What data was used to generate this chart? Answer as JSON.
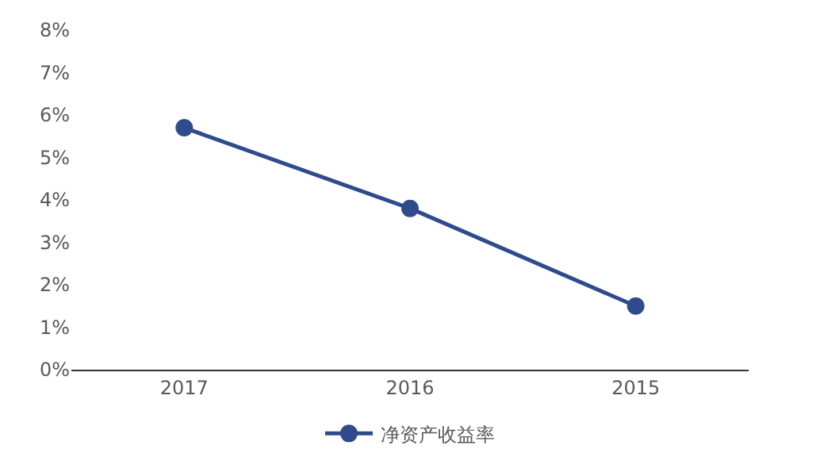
{
  "chart_data": {
    "type": "line",
    "categories": [
      "2017",
      "2016",
      "2015"
    ],
    "series": [
      {
        "name": "净资产收益率",
        "color": "#2f4b8c",
        "values": [
          5.7,
          3.8,
          1.5
        ]
      }
    ],
    "ylim": [
      0,
      8
    ],
    "yticks": [
      {
        "value": 0,
        "label": "0%"
      },
      {
        "value": 1,
        "label": "1%"
      },
      {
        "value": 2,
        "label": "2%"
      },
      {
        "value": 3,
        "label": "3%"
      },
      {
        "value": 4,
        "label": "4%"
      },
      {
        "value": 5,
        "label": "5%"
      },
      {
        "value": 6,
        "label": "6%"
      },
      {
        "value": 7,
        "label": "7%"
      },
      {
        "value": 8,
        "label": "8%"
      }
    ],
    "legend": "bottom",
    "marker": "circle",
    "line_style": "solid"
  }
}
